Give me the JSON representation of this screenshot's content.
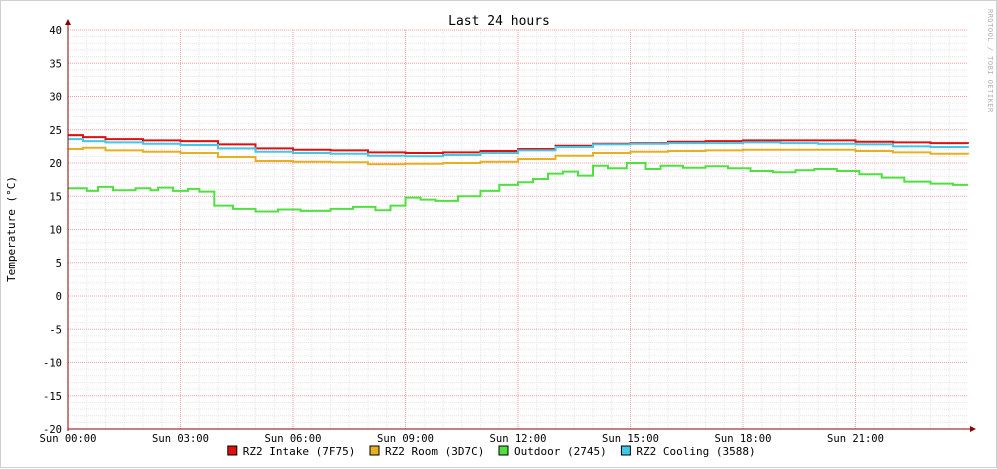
{
  "chart_data": {
    "type": "line",
    "title": "Last 24 hours",
    "ylabel": "Temperature (°C)",
    "xlabel": "",
    "watermark": "RRDTOOL / TOBI OETIKER",
    "ylim": [
      -20,
      40
    ],
    "yticks": [
      40,
      35,
      30,
      25,
      20,
      15,
      10,
      5,
      0,
      -5,
      -10,
      -15,
      -20
    ],
    "xlim": [
      0,
      24
    ],
    "xticks": [
      {
        "x": 0,
        "label": "Sun 00:00"
      },
      {
        "x": 3,
        "label": "Sun 03:00"
      },
      {
        "x": 6,
        "label": "Sun 06:00"
      },
      {
        "x": 9,
        "label": "Sun 09:00"
      },
      {
        "x": 12,
        "label": "Sun 12:00"
      },
      {
        "x": 15,
        "label": "Sun 15:00"
      },
      {
        "x": 18,
        "label": "Sun 18:00"
      },
      {
        "x": 21,
        "label": "Sun 21:00"
      }
    ],
    "grid": true,
    "legend_position": "bottom",
    "colors": {
      "major_grid": "#f0a0a0",
      "minor_grid": "#e6e6e6",
      "axis": "#8b0000"
    },
    "series": [
      {
        "name": "RZ2 Intake (7F75)",
        "color": "#e01010",
        "x": [
          0,
          0.4,
          1,
          2,
          3,
          4,
          5,
          6,
          7,
          8,
          9,
          10,
          11,
          12,
          13,
          14,
          15,
          16,
          17,
          18,
          19,
          20,
          21,
          22,
          23,
          24
        ],
        "y": [
          24.2,
          23.9,
          23.6,
          23.4,
          23.3,
          22.8,
          22.2,
          22.0,
          21.9,
          21.6,
          21.5,
          21.6,
          21.8,
          22.1,
          22.6,
          22.9,
          23.0,
          23.2,
          23.3,
          23.4,
          23.4,
          23.4,
          23.2,
          23.1,
          23.0,
          22.9
        ]
      },
      {
        "name": "RZ2 Room (3D7C)",
        "color": "#e8b020",
        "x": [
          0,
          0.4,
          1,
          2,
          3,
          4,
          5,
          6,
          7,
          8,
          9,
          10,
          11,
          12,
          13,
          14,
          15,
          16,
          17,
          18,
          19,
          20,
          21,
          22,
          23,
          24
        ],
        "y": [
          22.1,
          22.3,
          21.9,
          21.7,
          21.5,
          20.9,
          20.3,
          20.2,
          20.1,
          19.8,
          19.9,
          20.0,
          20.2,
          20.6,
          21.1,
          21.5,
          21.7,
          21.8,
          21.9,
          22.0,
          22.0,
          22.0,
          21.8,
          21.6,
          21.4,
          21.3
        ]
      },
      {
        "name": "Outdoor (2745)",
        "color": "#50e040",
        "x": [
          0,
          0.5,
          0.8,
          1.2,
          1.8,
          2.2,
          2.4,
          2.8,
          3.2,
          3.5,
          3.9,
          4.4,
          5.0,
          5.6,
          6.2,
          7.0,
          7.6,
          8.2,
          8.6,
          9.0,
          9.4,
          9.8,
          10.4,
          11.0,
          11.5,
          12.0,
          12.4,
          12.8,
          13.2,
          13.6,
          14.0,
          14.4,
          14.9,
          15.4,
          15.8,
          16.4,
          17.0,
          17.6,
          18.2,
          18.8,
          19.4,
          19.9,
          20.5,
          21.1,
          21.7,
          22.3,
          23.0,
          23.6,
          24
        ],
        "y": [
          16.2,
          15.8,
          16.4,
          15.9,
          16.2,
          15.9,
          16.3,
          15.8,
          16.1,
          15.7,
          13.6,
          13.1,
          12.7,
          13.0,
          12.8,
          13.1,
          13.4,
          12.9,
          13.6,
          14.8,
          14.5,
          14.3,
          15.0,
          15.8,
          16.7,
          17.1,
          17.6,
          18.4,
          18.7,
          18.1,
          19.6,
          19.2,
          20.0,
          19.1,
          19.6,
          19.3,
          19.5,
          19.2,
          18.8,
          18.6,
          18.9,
          19.1,
          18.8,
          18.3,
          17.8,
          17.2,
          16.9,
          16.7,
          16.7
        ]
      },
      {
        "name": "RZ2 Cooling (3588)",
        "color": "#40c8e8",
        "x": [
          0,
          0.4,
          1,
          2,
          3,
          4,
          5,
          6,
          7,
          8,
          9,
          10,
          11,
          12,
          13,
          14,
          15,
          16,
          17,
          18,
          19,
          20,
          21,
          22,
          23,
          24
        ],
        "y": [
          23.6,
          23.3,
          23.1,
          22.9,
          22.7,
          22.2,
          21.7,
          21.5,
          21.4,
          21.1,
          21.0,
          21.2,
          21.5,
          21.9,
          22.4,
          22.8,
          22.9,
          23.0,
          23.0,
          23.1,
          23.0,
          22.9,
          22.8,
          22.5,
          22.4,
          22.3
        ]
      }
    ]
  }
}
